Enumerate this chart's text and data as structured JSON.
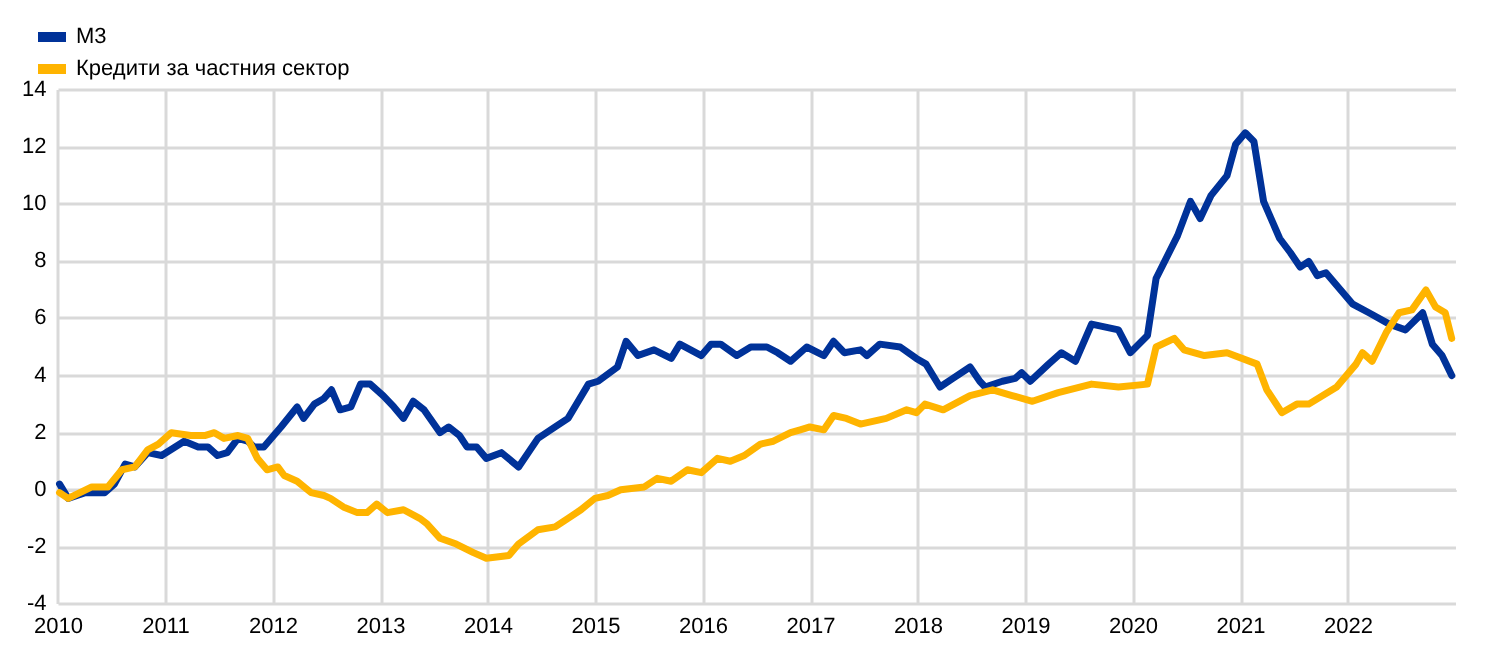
{
  "chart_data": {
    "type": "line",
    "xlim": [
      2010,
      2023
    ],
    "xticks": [
      2010,
      2011,
      2012,
      2013,
      2014,
      2015,
      2016,
      2017,
      2018,
      2019,
      2020,
      2021,
      2022
    ],
    "ylim": [
      -4,
      14
    ],
    "yticks": [
      -4,
      -2,
      0,
      2,
      4,
      6,
      8,
      10,
      12,
      14
    ],
    "grid": true,
    "legend": "top left",
    "marker": "none",
    "line_style": "solid",
    "series": [
      {
        "name": "M3",
        "color": "#003299",
        "x": [
          2010.01,
          2010.09,
          2010.25,
          2010.43,
          2010.52,
          2010.62,
          2010.71,
          2010.83,
          2010.96,
          2011.17,
          2011.3,
          2011.39,
          2011.48,
          2011.57,
          2011.67,
          2011.76,
          2011.82,
          2011.91,
          2012.07,
          2012.22,
          2012.28,
          2012.38,
          2012.47,
          2012.54,
          2012.62,
          2012.72,
          2012.81,
          2012.9,
          2013.02,
          2013.12,
          2013.21,
          2013.3,
          2013.4,
          2013.55,
          2013.63,
          2013.73,
          2013.8,
          2013.89,
          2013.98,
          2014.12,
          2014.28,
          2014.46,
          2014.62,
          2014.74,
          2014.93,
          2015.02,
          2015.2,
          2015.28,
          2015.39,
          2015.54,
          2015.7,
          2015.78,
          2015.98,
          2016.07,
          2016.16,
          2016.31,
          2016.44,
          2016.59,
          2016.69,
          2016.81,
          2016.96,
          2017.12,
          2017.21,
          2017.31,
          2017.46,
          2017.52,
          2017.64,
          2017.83,
          2017.98,
          2018.07,
          2018.2,
          2018.32,
          2018.48,
          2018.57,
          2018.62,
          2018.78,
          2018.9,
          2018.96,
          2019.04,
          2019.21,
          2019.33,
          2019.46,
          2019.61,
          2019.86,
          2019.97,
          2020.13,
          2020.21,
          2020.41,
          2020.53,
          2020.62,
          2020.72,
          2020.87,
          2020.95,
          2021.04,
          2021.12,
          2021.21,
          2021.36,
          2021.46,
          2021.55,
          2021.63,
          2021.71,
          2021.79,
          2022.04,
          2022.19,
          2022.38,
          2022.53,
          2022.69,
          2022.78,
          2022.87,
          2022.96
        ],
        "values": [
          0.2,
          -0.3,
          -0.1,
          -0.1,
          0.2,
          0.9,
          0.8,
          1.3,
          1.2,
          1.7,
          1.5,
          1.5,
          1.2,
          1.3,
          1.8,
          1.7,
          1.5,
          1.5,
          2.2,
          2.9,
          2.5,
          3.0,
          3.2,
          3.5,
          2.8,
          2.9,
          3.7,
          3.7,
          3.3,
          2.9,
          2.5,
          3.1,
          2.8,
          2.0,
          2.2,
          1.9,
          1.5,
          1.5,
          1.1,
          1.3,
          0.8,
          1.8,
          2.2,
          2.5,
          3.7,
          3.8,
          4.3,
          5.2,
          4.7,
          4.9,
          4.6,
          5.1,
          4.7,
          5.1,
          5.1,
          4.7,
          5.0,
          5.0,
          4.8,
          4.5,
          5.0,
          4.7,
          5.2,
          4.8,
          4.9,
          4.7,
          5.1,
          5.0,
          4.6,
          4.4,
          3.6,
          3.9,
          4.3,
          3.8,
          3.6,
          3.8,
          3.9,
          4.1,
          3.8,
          4.4,
          4.8,
          4.5,
          5.8,
          5.6,
          4.8,
          5.4,
          7.4,
          8.9,
          10.1,
          9.5,
          10.3,
          11.0,
          12.1,
          12.5,
          12.2,
          10.1,
          8.8,
          8.3,
          7.8,
          8.0,
          7.5,
          7.6,
          6.5,
          6.2,
          5.8,
          5.6,
          6.2,
          5.1,
          4.7,
          4.0
        ]
      },
      {
        "name": "Кредити за частния сектор",
        "color": "#ffb400",
        "x": [
          2010.01,
          2010.09,
          2010.31,
          2010.46,
          2010.59,
          2010.71,
          2010.83,
          2010.93,
          2011.05,
          2011.23,
          2011.36,
          2011.45,
          2011.54,
          2011.67,
          2011.76,
          2011.85,
          2011.94,
          2012.04,
          2012.1,
          2012.22,
          2012.35,
          2012.47,
          2012.53,
          2012.65,
          2012.78,
          2012.87,
          2012.96,
          2013.06,
          2013.21,
          2013.36,
          2013.43,
          2013.55,
          2013.7,
          2013.86,
          2013.98,
          2014.19,
          2014.28,
          2014.46,
          2014.62,
          2014.74,
          2014.86,
          2014.99,
          2015.11,
          2015.23,
          2015.45,
          2015.57,
          2015.7,
          2015.85,
          2015.98,
          2016.13,
          2016.25,
          2016.38,
          2016.53,
          2016.65,
          2016.81,
          2016.9,
          2016.99,
          2017.12,
          2017.21,
          2017.33,
          2017.46,
          2017.7,
          2017.89,
          2017.98,
          2018.06,
          2018.23,
          2018.48,
          2018.69,
          2018.87,
          2019.06,
          2019.3,
          2019.61,
          2019.86,
          2020.13,
          2020.21,
          2020.38,
          2020.47,
          2020.66,
          2020.87,
          2021.15,
          2021.24,
          2021.38,
          2021.52,
          2021.63,
          2021.89,
          2022.07,
          2022.13,
          2022.22,
          2022.35,
          2022.47,
          2022.59,
          2022.72,
          2022.81,
          2022.9,
          2022.96
        ],
        "values": [
          -0.1,
          -0.3,
          0.1,
          0.1,
          0.7,
          0.8,
          1.4,
          1.6,
          2.0,
          1.9,
          1.9,
          2.0,
          1.8,
          1.9,
          1.8,
          1.1,
          0.7,
          0.8,
          0.5,
          0.3,
          -0.1,
          -0.2,
          -0.3,
          -0.6,
          -0.8,
          -0.8,
          -0.5,
          -0.8,
          -0.7,
          -1.0,
          -1.2,
          -1.7,
          -1.9,
          -2.2,
          -2.4,
          -2.3,
          -1.9,
          -1.4,
          -1.3,
          -1.0,
          -0.7,
          -0.3,
          -0.2,
          0.0,
          0.1,
          0.4,
          0.3,
          0.7,
          0.6,
          1.1,
          1.0,
          1.2,
          1.6,
          1.7,
          2.0,
          2.1,
          2.2,
          2.1,
          2.6,
          2.5,
          2.3,
          2.5,
          2.8,
          2.7,
          3.0,
          2.8,
          3.3,
          3.5,
          3.3,
          3.1,
          3.4,
          3.7,
          3.6,
          3.7,
          5.0,
          5.3,
          4.9,
          4.7,
          4.8,
          4.4,
          3.5,
          2.7,
          3.0,
          3.0,
          3.6,
          4.4,
          4.8,
          4.5,
          5.5,
          6.2,
          6.3,
          7.0,
          6.4,
          6.2,
          5.3
        ]
      }
    ]
  }
}
